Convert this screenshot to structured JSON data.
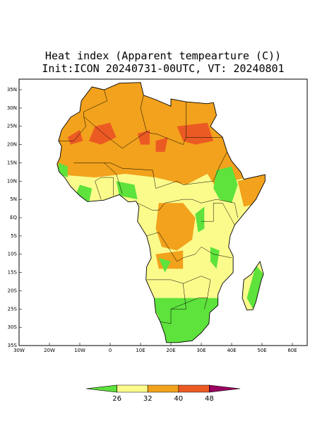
{
  "title": [
    "Heat index (Apparent tempearture (C))",
    "Init:ICON 20240731-00UTC, VT: 20240801"
  ],
  "lat_ticks": [
    "35N",
    "30N",
    "25N",
    "20N",
    "15N",
    "10N",
    "5N",
    "EQ",
    "5S",
    "10S",
    "15S",
    "20S",
    "25S",
    "30S",
    "35S"
  ],
  "lon_ticks": [
    "30W",
    "20W",
    "10W",
    "0",
    "10E",
    "20E",
    "30E",
    "40E",
    "50E",
    "60E"
  ],
  "colorbar": {
    "ticks": [
      26,
      32,
      40,
      48
    ],
    "colors": [
      "#5ee23c",
      "#fbfb8c",
      "#f2a21c",
      "#ec5a24",
      "#99005e"
    ]
  }
}
